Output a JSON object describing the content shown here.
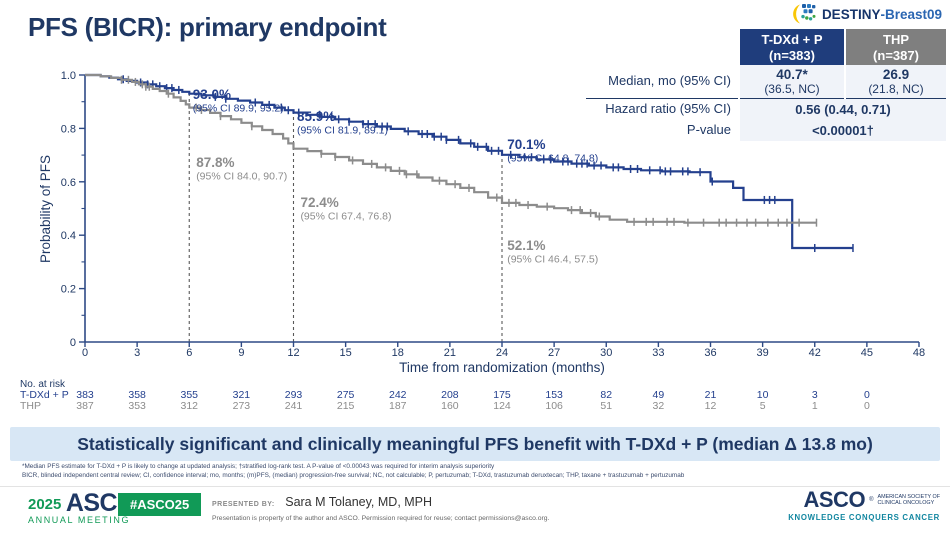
{
  "title": "PFS (BICR): primary endpoint",
  "logo": {
    "name_bold": "DESTINY",
    "name_rest": "-Breast09"
  },
  "results_table": {
    "arm1_name": "T-DXd + P",
    "arm1_n": "(n=383)",
    "arm2_name": "THP",
    "arm2_n": "(n=387)",
    "median_label": "Median, mo (95% CI)",
    "median_tdxd": "40.7*",
    "median_tdxd_ci": "(36.5, NC)",
    "median_thp": "26.9",
    "median_thp_ci": "(21.8, NC)",
    "hr_label": "Hazard ratio (95% CI)",
    "hr_value": "0.56 (0.44, 0.71)",
    "p_label": "P-value",
    "p_value": "<0.00001†"
  },
  "chart_data": {
    "type": "line",
    "subtype": "kaplan-meier-step",
    "title": "",
    "xlabel": "Time from randomization (months)",
    "ylabel": "Probability of PFS",
    "xlim": [
      0,
      48
    ],
    "ylim": [
      0,
      1.0
    ],
    "xticks": [
      0,
      3,
      6,
      9,
      12,
      15,
      18,
      21,
      24,
      27,
      30,
      33,
      36,
      39,
      42,
      45,
      48
    ],
    "yticks": [
      0,
      0.2,
      0.4,
      0.6,
      0.8,
      1.0
    ],
    "ytick_labels": [
      "0",
      "0.2",
      "0.4",
      "0.6",
      "0.8",
      "1.0"
    ],
    "yticks_minor": [
      0.1,
      0.3,
      0.5,
      0.7,
      0.9
    ],
    "grid": false,
    "legend": "none",
    "axis_color": "#2E4A85",
    "dashed_line_color": "#595959",
    "dashed_lines": [
      {
        "month": 6,
        "to_prob": 0.93
      },
      {
        "month": 12,
        "to_prob": 0.859
      },
      {
        "month": 24,
        "to_prob": 0.701
      }
    ],
    "series": [
      {
        "name": "T-DXd + P",
        "color": "#24408E",
        "points": [
          [
            0,
            1.0
          ],
          [
            0.9,
            0.995
          ],
          [
            1.4,
            0.99
          ],
          [
            1.9,
            0.984
          ],
          [
            2.4,
            0.978
          ],
          [
            3.0,
            0.972
          ],
          [
            3.6,
            0.965
          ],
          [
            4.1,
            0.958
          ],
          [
            4.6,
            0.951
          ],
          [
            5.1,
            0.944
          ],
          [
            5.6,
            0.937
          ],
          [
            6.0,
            0.93
          ],
          [
            6.7,
            0.924
          ],
          [
            7.4,
            0.918
          ],
          [
            8.1,
            0.911
          ],
          [
            8.8,
            0.904
          ],
          [
            9.5,
            0.897
          ],
          [
            10.2,
            0.888
          ],
          [
            10.9,
            0.878
          ],
          [
            11.5,
            0.868
          ],
          [
            12.0,
            0.859
          ],
          [
            12.8,
            0.851
          ],
          [
            13.6,
            0.843
          ],
          [
            14.4,
            0.834
          ],
          [
            15.2,
            0.825
          ],
          [
            16.0,
            0.816
          ],
          [
            16.8,
            0.807
          ],
          [
            17.6,
            0.798
          ],
          [
            18.4,
            0.789
          ],
          [
            19.2,
            0.779
          ],
          [
            20.0,
            0.769
          ],
          [
            20.8,
            0.757
          ],
          [
            21.6,
            0.744
          ],
          [
            22.4,
            0.731
          ],
          [
            23.2,
            0.716
          ],
          [
            24.0,
            0.701
          ],
          [
            25.0,
            0.692
          ],
          [
            26.0,
            0.684
          ],
          [
            27.0,
            0.676
          ],
          [
            28.0,
            0.668
          ],
          [
            29.0,
            0.661
          ],
          [
            30.0,
            0.654
          ],
          [
            31.0,
            0.648
          ],
          [
            32.0,
            0.643
          ],
          [
            33.2,
            0.639
          ],
          [
            34.8,
            0.636
          ],
          [
            36.0,
            0.601
          ],
          [
            37.3,
            0.577
          ],
          [
            37.9,
            0.532
          ],
          [
            40.7,
            0.352
          ],
          [
            44.2,
            0.352
          ]
        ],
        "censor_marks": [
          2.2,
          3.2,
          3.6,
          3.9,
          4.3,
          4.7,
          5.0,
          5.4,
          7.5,
          8.1,
          9.8,
          10.6,
          11.3,
          11.7,
          12.3,
          13.5,
          14.2,
          14.6,
          15.2,
          16.0,
          16.3,
          16.7,
          17.1,
          17.4,
          18.6,
          19.4,
          19.7,
          20.1,
          20.5,
          20.8,
          21.5,
          22.2,
          22.6,
          23.1,
          23.4,
          23.8,
          24.5,
          25.3,
          25.7,
          26.4,
          26.8,
          27.5,
          27.8,
          28.3,
          28.6,
          28.9,
          29.3,
          29.7,
          30.4,
          30.7,
          31.4,
          31.8,
          32.5,
          33.1,
          33.4,
          33.7,
          34.4,
          34.7,
          35.4,
          36.1,
          39.1,
          39.4,
          39.7,
          42.0,
          44.2
        ]
      },
      {
        "name": "THP",
        "color": "#8C8C8C",
        "points": [
          [
            0,
            1.0
          ],
          [
            0.9,
            0.995
          ],
          [
            1.5,
            0.989
          ],
          [
            2.1,
            0.982
          ],
          [
            2.7,
            0.974
          ],
          [
            3.1,
            0.965
          ],
          [
            3.5,
            0.956
          ],
          [
            3.9,
            0.948
          ],
          [
            4.3,
            0.94
          ],
          [
            4.7,
            0.93
          ],
          [
            5.1,
            0.916
          ],
          [
            5.5,
            0.903
          ],
          [
            5.8,
            0.89
          ],
          [
            6.0,
            0.878
          ],
          [
            6.6,
            0.869
          ],
          [
            7.2,
            0.858
          ],
          [
            7.8,
            0.846
          ],
          [
            8.4,
            0.834
          ],
          [
            9.0,
            0.821
          ],
          [
            9.6,
            0.808
          ],
          [
            10.2,
            0.794
          ],
          [
            10.8,
            0.779
          ],
          [
            11.4,
            0.762
          ],
          [
            11.7,
            0.744
          ],
          [
            12.0,
            0.724
          ],
          [
            12.8,
            0.715
          ],
          [
            13.6,
            0.705
          ],
          [
            14.4,
            0.693
          ],
          [
            15.2,
            0.68
          ],
          [
            16.0,
            0.667
          ],
          [
            16.8,
            0.654
          ],
          [
            17.6,
            0.641
          ],
          [
            18.4,
            0.628
          ],
          [
            19.2,
            0.616
          ],
          [
            20.0,
            0.604
          ],
          [
            20.8,
            0.591
          ],
          [
            21.6,
            0.577
          ],
          [
            22.4,
            0.561
          ],
          [
            23.2,
            0.541
          ],
          [
            24.0,
            0.521
          ],
          [
            25.0,
            0.513
          ],
          [
            26.0,
            0.507
          ],
          [
            27.0,
            0.501
          ],
          [
            27.8,
            0.494
          ],
          [
            28.6,
            0.483
          ],
          [
            29.4,
            0.47
          ],
          [
            30.2,
            0.458
          ],
          [
            31.2,
            0.45
          ],
          [
            34.5,
            0.447
          ],
          [
            42.1,
            0.447
          ]
        ],
        "censor_marks": [
          2.1,
          2.5,
          2.9,
          3.3,
          3.5,
          3.7,
          4.8,
          6.4,
          6.7,
          7.8,
          9.6,
          13.6,
          14.4,
          15.4,
          16.5,
          17.3,
          18.1,
          18.5,
          19.1,
          20.4,
          21.3,
          22.1,
          23.7,
          24.4,
          24.8,
          25.5,
          26.6,
          28.0,
          28.5,
          29.1,
          29.6,
          31.6,
          32.3,
          32.7,
          33.5,
          33.9,
          34.7,
          35.6,
          36.5,
          36.9,
          37.5,
          38.1,
          38.6,
          39.3,
          39.9,
          40.4,
          41.1,
          42.1
        ]
      }
    ],
    "annotations": [
      {
        "series": "T-DXd + P",
        "x": 6.2,
        "y": 0.91,
        "pct": "93.0%",
        "ci": "(95% CI 89.9, 95.2)",
        "color": "#24408E"
      },
      {
        "series": "T-DXd + P",
        "x": 12.2,
        "y": 0.828,
        "pct": "85.9%",
        "ci": "(95% CI 81.9, 89.1)",
        "color": "#24408E"
      },
      {
        "series": "T-DXd + P",
        "x": 24.3,
        "y": 0.723,
        "pct": "70.1%",
        "ci": "(95% CI 64.8, 74.8)",
        "color": "#24408E"
      },
      {
        "series": "THP",
        "x": 6.4,
        "y": 0.655,
        "pct": "87.8%",
        "ci": "(95% CI 84.0, 90.7)",
        "color": "#8C8C8C"
      },
      {
        "series": "THP",
        "x": 12.4,
        "y": 0.505,
        "pct": "72.4%",
        "ci": "(95% CI 67.4, 76.8)",
        "color": "#8C8C8C"
      },
      {
        "series": "THP",
        "x": 24.3,
        "y": 0.345,
        "pct": "52.1%",
        "ci": "(95% CI 46.4, 57.5)",
        "color": "#8C8C8C"
      }
    ]
  },
  "at_risk": {
    "label": "No. at risk",
    "times": [
      0,
      3,
      6,
      9,
      12,
      15,
      18,
      21,
      24,
      27,
      30,
      33,
      36,
      39,
      42,
      45
    ],
    "rows": [
      {
        "name": "T-DXd + P",
        "color": "#24408E",
        "values": [
          383,
          358,
          355,
          321,
          293,
          275,
          242,
          208,
          175,
          153,
          82,
          49,
          21,
          10,
          3,
          0
        ]
      },
      {
        "name": "THP",
        "color": "#8C8C8C",
        "values": [
          387,
          353,
          312,
          273,
          241,
          215,
          187,
          160,
          124,
          106,
          51,
          32,
          12,
          5,
          1,
          0
        ]
      }
    ]
  },
  "banner": {
    "text": "Statistically significant and clinically meaningful PFS benefit with T-DXd + P (median Δ 13.8 mo)"
  },
  "footnotes": [
    "*Median PFS estimate for T-DXd + P is likely to change at updated analysis; †stratified log-rank test. A P-value of <0.00043 was required for interim analysis superiority",
    "BICR, blinded independent central review; CI, confidence interval; mo, months; (m)PFS, (median) progression-free survival; NC, not calculable; P, pertuzumab; T-DXd, trastuzumab deruxtecan; THP, taxane + trastuzumab + pertuzumab"
  ],
  "footer": {
    "year": "2025",
    "asco": "ASCO",
    "annual_meeting": "ANNUAL MEETING",
    "hashtag": "#ASCO25",
    "presented_by_label": "PRESENTED BY:",
    "presenter": "Sara M Tolaney, MD, MPH",
    "permission": "Presentation is property of the author and ASCO. Permission required for reuse; contact permissions@asco.org.",
    "asco_right": "ASCO",
    "asco_right_sub1": "AMERICAN SOCIETY OF",
    "asco_right_sub2": "CLINICAL ONCOLOGY",
    "asco_tagline": "KNOWLEDGE CONQUERS CANCER"
  },
  "colors": {
    "navy": "#1F3864",
    "curve_blue": "#24408E",
    "curve_gray": "#8C8C8C",
    "banner_bg": "#D8E7F5",
    "asco_green": "#119A57",
    "asco_teal": "#1186A0",
    "table_header_blue": "#1F3D7C",
    "table_header_gray": "#7F7F7F"
  }
}
